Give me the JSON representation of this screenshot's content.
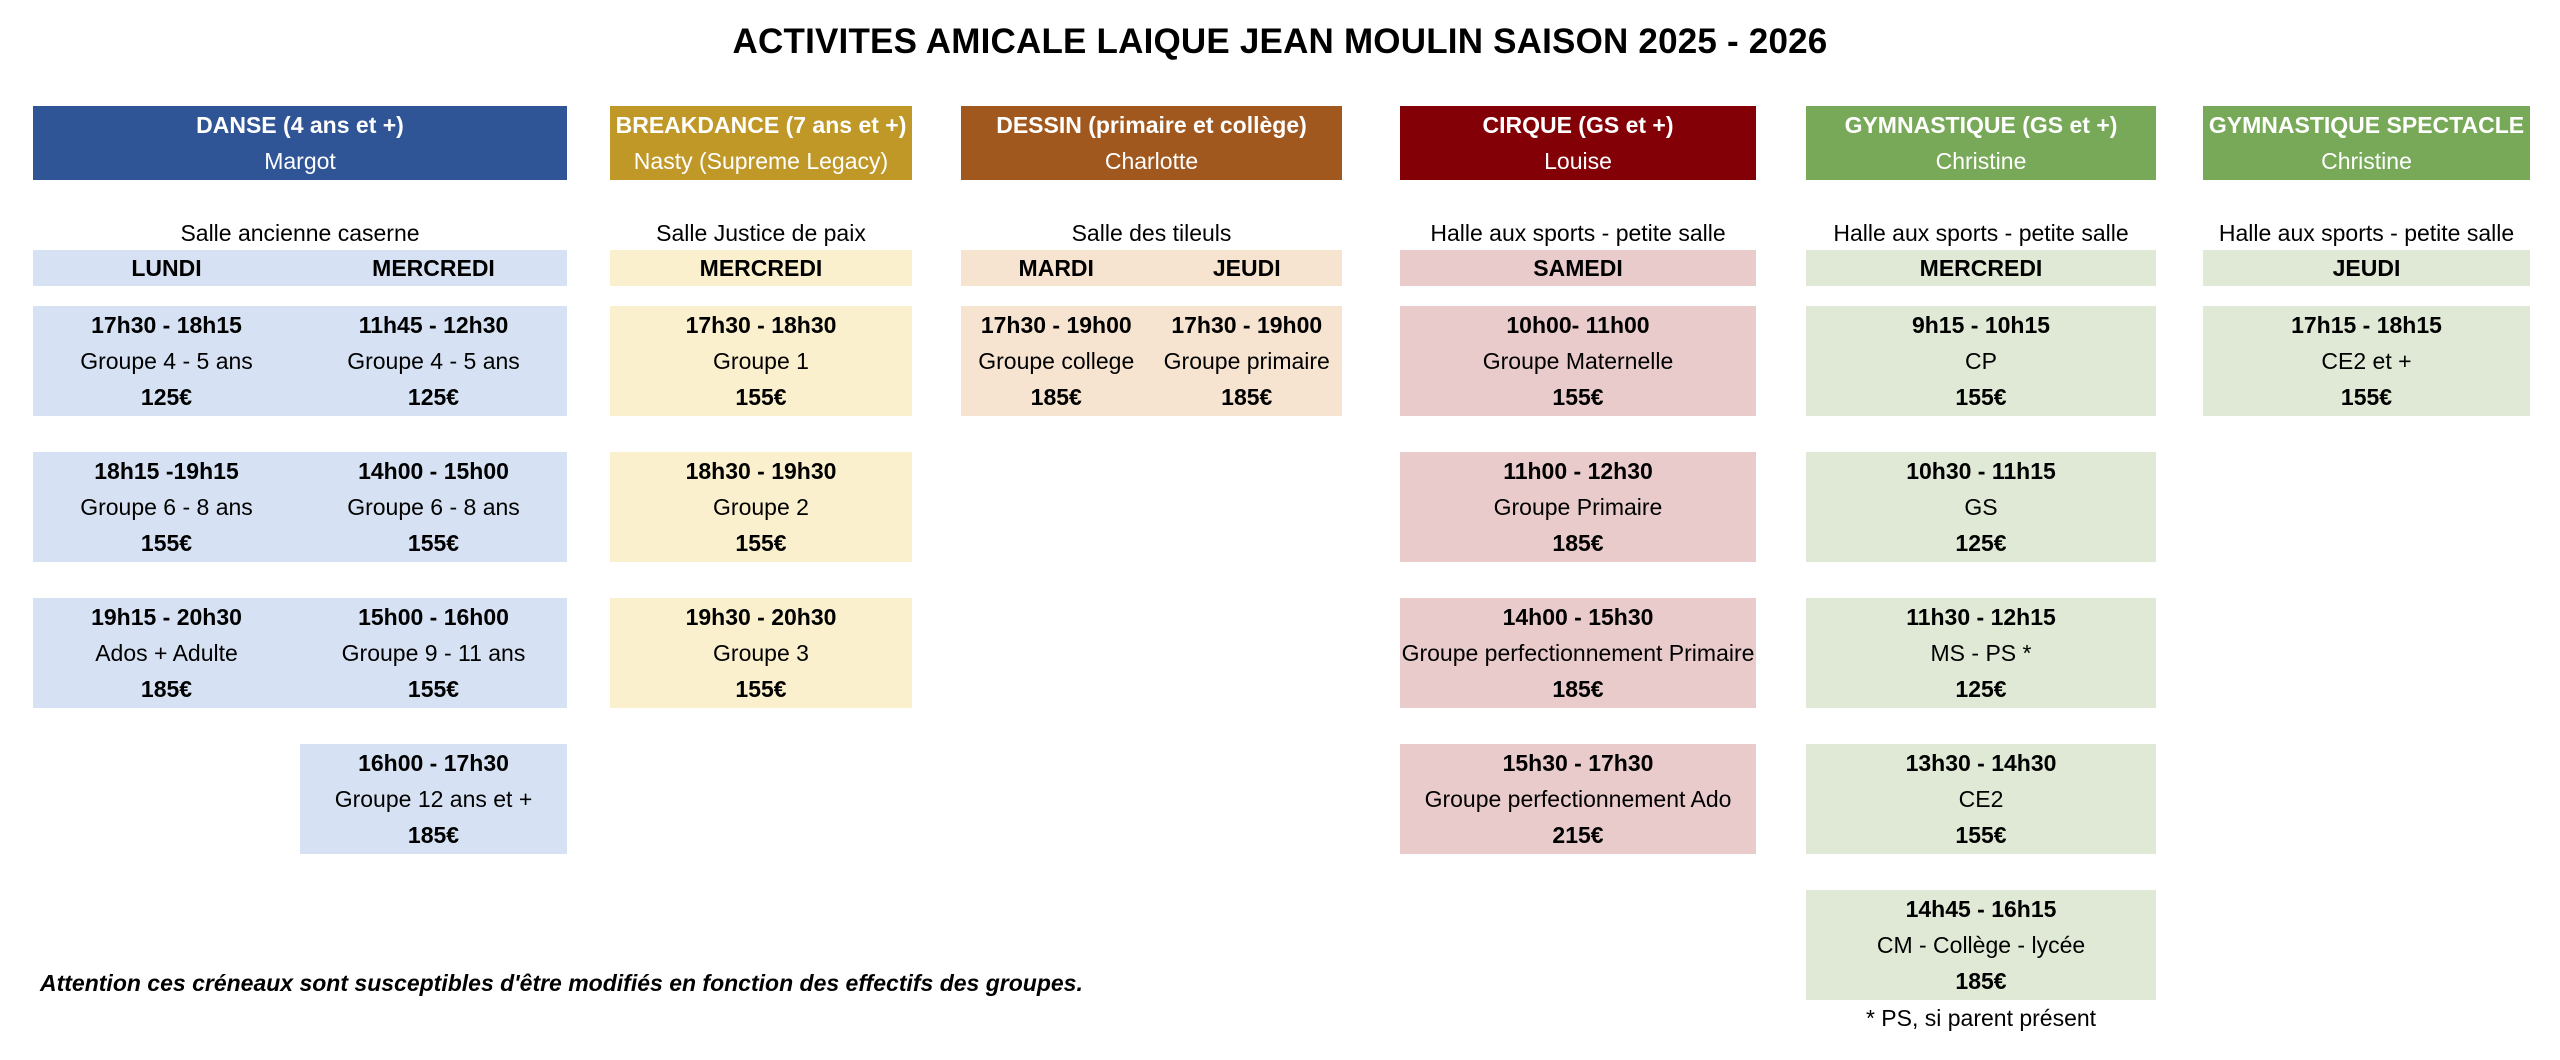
{
  "title": "ACTIVITES AMICALE LAIQUE JEAN MOULIN SAISON 2025 - 2026",
  "activities": [
    {
      "name": "DANSE (4 ans et +)",
      "teacher": "Margot",
      "venue": "Salle ancienne caserne",
      "header_color": "#2f5597",
      "light_color": "#d6e2f3",
      "days": [
        {
          "label": "LUNDI",
          "slots": [
            {
              "time": "17h30 - 18h15",
              "group": "Groupe 4 - 5 ans",
              "price": "125€"
            },
            {
              "time": "18h15 -19h15",
              "group": "Groupe 6 - 8 ans",
              "price": "155€"
            },
            {
              "time": "19h15 - 20h30",
              "group": "Ados + Adulte",
              "price": "185€"
            }
          ]
        },
        {
          "label": "MERCREDI",
          "slots": [
            {
              "time": "11h45 - 12h30",
              "group": "Groupe 4 - 5 ans",
              "price": "125€"
            },
            {
              "time": "14h00 - 15h00",
              "group": "Groupe 6 - 8 ans",
              "price": "155€"
            },
            {
              "time": "15h00 - 16h00",
              "group": "Groupe 9 - 11 ans",
              "price": "155€"
            },
            {
              "time": "16h00 - 17h30",
              "group": "Groupe 12 ans et +",
              "price": "185€"
            }
          ]
        }
      ]
    },
    {
      "name": "BREAKDANCE (7 ans et +)",
      "teacher": "Nasty (Supreme Legacy)",
      "venue": "Salle Justice de paix",
      "header_color": "#bf9828",
      "light_color": "#fbf0cd",
      "days": [
        {
          "label": "MERCREDI",
          "slots": [
            {
              "time": "17h30 - 18h30",
              "group": "Groupe 1",
              "price": "155€"
            },
            {
              "time": "18h30 - 19h30",
              "group": "Groupe 2",
              "price": "155€"
            },
            {
              "time": "19h30 - 20h30",
              "group": "Groupe 3",
              "price": "155€"
            }
          ]
        }
      ]
    },
    {
      "name": "DESSIN (primaire et collège)",
      "teacher": "Charlotte",
      "venue": "Salle des tileuls",
      "header_color": "#a0581e",
      "light_color": "#f6e4d1",
      "days": [
        {
          "label": "MARDI",
          "slots": [
            {
              "time": "17h30 - 19h00",
              "group": "Groupe college",
              "price": "185€"
            }
          ]
        },
        {
          "label": "JEUDI",
          "slots": [
            {
              "time": "17h30 - 19h00",
              "group": "Groupe primaire",
              "price": "185€"
            }
          ]
        }
      ]
    },
    {
      "name": "CIRQUE (GS et +)",
      "teacher": "Louise",
      "venue": "Halle aux sports - petite salle",
      "header_color": "#840007",
      "light_color": "#eacbcc",
      "days": [
        {
          "label": "SAMEDI",
          "slots": [
            {
              "time": "10h00- 11h00",
              "group": "Groupe Maternelle",
              "price": "155€"
            },
            {
              "time": "11h00 - 12h30",
              "group": "Groupe Primaire",
              "price": "185€"
            },
            {
              "time": "14h00 - 15h30",
              "group": "Groupe perfectionnement Primaire",
              "price": "185€"
            },
            {
              "time": "15h30 - 17h30",
              "group": "Groupe perfectionnement Ado",
              "price": "215€"
            }
          ]
        }
      ]
    },
    {
      "name": "GYMNASTIQUE (GS et +)",
      "teacher": "Christine",
      "venue": "Halle aux sports - petite salle",
      "header_color": "#78a958",
      "light_color": "#dfe9d5",
      "days": [
        {
          "label": "MERCREDI",
          "slots": [
            {
              "time": "9h15 - 10h15",
              "group": "CP",
              "price": "155€"
            },
            {
              "time": "10h30 - 11h15",
              "group": "GS",
              "price": "125€"
            },
            {
              "time": "11h30 - 12h15",
              "group": "MS - PS *",
              "price": "125€"
            },
            {
              "time": "13h30 - 14h30",
              "group": "CE2",
              "price": "155€"
            },
            {
              "time": "14h45 - 16h15",
              "group": "CM - Collège - lycée",
              "price": "185€"
            }
          ]
        }
      ]
    },
    {
      "name": "GYMNASTIQUE SPECTACLE",
      "teacher": "Christine",
      "venue": "Halle aux sports - petite salle",
      "header_color": "#78a958",
      "light_color": "#dfe9d5",
      "days": [
        {
          "label": "JEUDI",
          "slots": [
            {
              "time": "17h15 - 18h15",
              "group": "CE2 et +",
              "price": "155€"
            }
          ]
        }
      ]
    }
  ],
  "note": "Attention ces créneaux sont susceptibles d'être modifiés en fonction des effectifs des groupes.",
  "footnote": "* PS, si parent présent"
}
